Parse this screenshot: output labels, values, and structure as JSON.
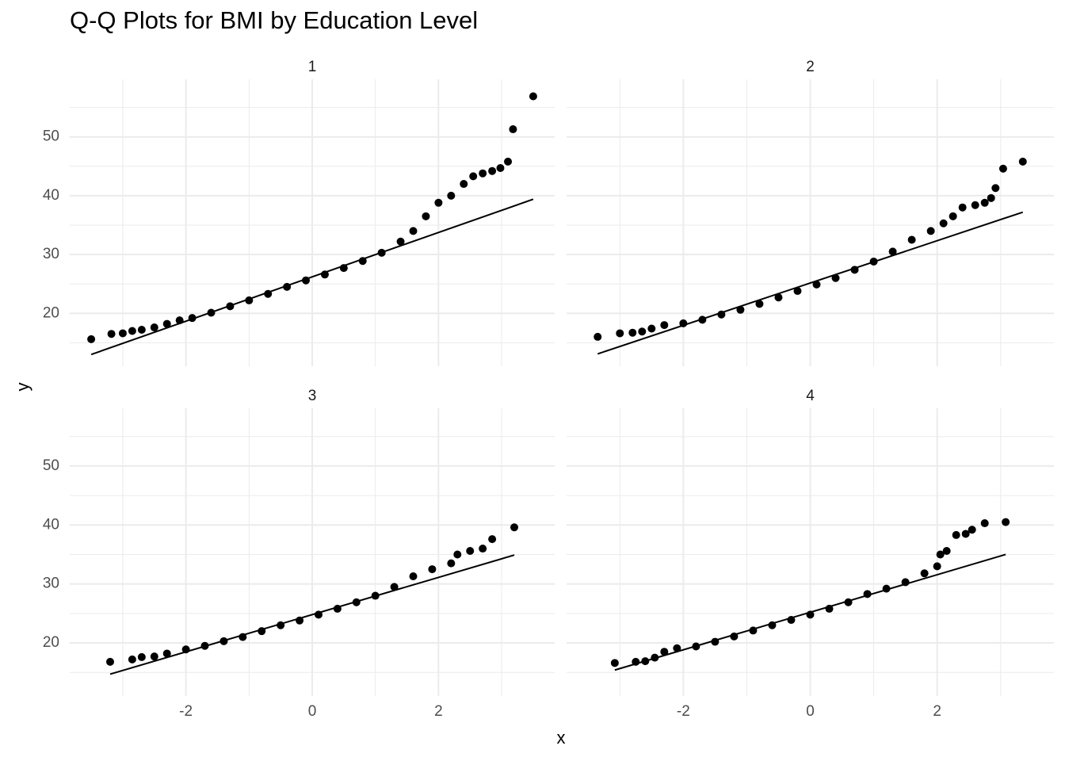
{
  "chart_data": {
    "type": "qq",
    "title": "Q-Q Plots for BMI by Education Level",
    "xlabel": "x",
    "ylabel": "y",
    "xlim": [
      -3.84,
      3.84
    ],
    "ylim": [
      11,
      59.8
    ],
    "xticks": [
      -2,
      0,
      2
    ],
    "yticks": [
      20,
      30,
      40,
      50
    ],
    "xminor": [
      -3,
      -1,
      1,
      3
    ],
    "yminor": [
      15,
      25,
      35,
      45,
      55
    ],
    "grid": true,
    "point_color": "#000000",
    "line_color": "#000000",
    "facets": [
      {
        "title": "1",
        "x": [
          -3.5,
          -3.18,
          -3.0,
          -2.85,
          -2.7,
          -2.5,
          -2.3,
          -2.1,
          -1.9,
          -1.6,
          -1.3,
          -1.0,
          -0.7,
          -0.4,
          -0.1,
          0.2,
          0.5,
          0.8,
          1.1,
          1.4,
          1.6,
          1.8,
          2.0,
          2.2,
          2.4,
          2.55,
          2.7,
          2.85,
          2.98,
          3.1,
          3.18,
          3.5
        ],
        "y": [
          15.6,
          16.5,
          16.6,
          17,
          17.2,
          17.6,
          18.2,
          18.8,
          19.2,
          20.1,
          21.2,
          22.2,
          23.3,
          24.5,
          25.6,
          26.6,
          27.7,
          28.9,
          30.3,
          32.2,
          34.0,
          36.5,
          38.8,
          40.0,
          42.0,
          43.3,
          43.8,
          44.2,
          44.7,
          45.8,
          51.3,
          56.9
        ],
        "line": {
          "x": [
            -3.5,
            3.5
          ],
          "y": [
            13,
            39.4
          ]
        }
      },
      {
        "title": "2",
        "x": [
          -3.35,
          -3.0,
          -2.8,
          -2.65,
          -2.5,
          -2.3,
          -2.0,
          -1.7,
          -1.4,
          -1.1,
          -0.8,
          -0.5,
          -0.2,
          0.1,
          0.4,
          0.7,
          1.0,
          1.3,
          1.6,
          1.9,
          2.1,
          2.25,
          2.4,
          2.6,
          2.75,
          2.85,
          2.92,
          3.04,
          3.35
        ],
        "y": [
          16,
          16.6,
          16.7,
          16.9,
          17.4,
          18,
          18.3,
          18.9,
          19.8,
          20.6,
          21.6,
          22.7,
          23.8,
          24.9,
          26,
          27.4,
          28.8,
          30.5,
          32.5,
          34,
          35.3,
          36.5,
          38,
          38.4,
          38.8,
          39.6,
          41.3,
          44.6,
          45.8
        ],
        "line": {
          "x": [
            -3.35,
            3.35
          ],
          "y": [
            13.1,
            37.2
          ]
        }
      },
      {
        "title": "3",
        "x": [
          -3.2,
          -2.85,
          -2.7,
          -2.5,
          -2.3,
          -2.0,
          -1.7,
          -1.4,
          -1.1,
          -0.8,
          -0.5,
          -0.2,
          0.1,
          0.4,
          0.7,
          1.0,
          1.3,
          1.6,
          1.9,
          2.2,
          2.3,
          2.5,
          2.7,
          2.85,
          3.2
        ],
        "y": [
          16.8,
          17.2,
          17.6,
          17.7,
          18.2,
          18.9,
          19.5,
          20.3,
          21,
          22,
          23,
          23.8,
          24.8,
          25.8,
          26.9,
          28,
          29.5,
          31.3,
          32.5,
          33.5,
          35,
          35.6,
          36,
          37.6,
          39.6
        ],
        "line": {
          "x": [
            -3.2,
            3.2
          ],
          "y": [
            14.7,
            34.9
          ]
        }
      },
      {
        "title": "4",
        "x": [
          -3.08,
          -2.75,
          -2.6,
          -2.45,
          -2.3,
          -2.1,
          -1.8,
          -1.5,
          -1.2,
          -0.9,
          -0.6,
          -0.3,
          0,
          0.3,
          0.6,
          0.9,
          1.2,
          1.5,
          1.8,
          2.0,
          2.05,
          2.15,
          2.3,
          2.45,
          2.55,
          2.75,
          3.08
        ],
        "y": [
          16.6,
          16.8,
          16.9,
          17.5,
          18.5,
          19.1,
          19.4,
          20.2,
          21.1,
          22.1,
          23,
          23.9,
          24.8,
          25.8,
          26.9,
          28.3,
          29.2,
          30.3,
          31.8,
          33,
          35,
          35.6,
          38.3,
          38.5,
          39.2,
          40.3,
          40.5
        ],
        "line": {
          "x": [
            -3.08,
            3.08
          ],
          "y": [
            15.4,
            35
          ]
        }
      }
    ]
  }
}
